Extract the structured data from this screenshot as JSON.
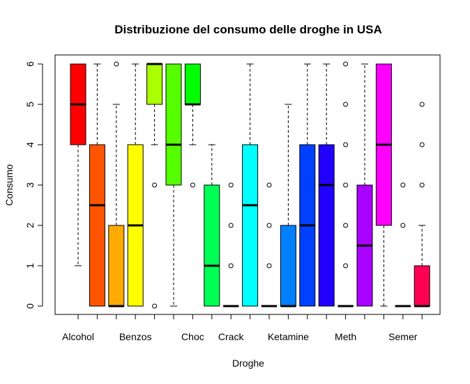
{
  "chart_data": {
    "type": "boxplot",
    "title": "Distribuzione del consumo delle droghe in USA",
    "xlabel": "Droghe",
    "ylabel": "Consumo",
    "ylim": [
      0,
      6
    ],
    "yticks": [
      0,
      1,
      2,
      3,
      4,
      5,
      6
    ],
    "x_tick_labels": [
      "Alcohol",
      "Benzos",
      "Choc",
      "Crack",
      "Ketamine",
      "Meth",
      "Semer"
    ],
    "x_tick_label_positions": [
      1,
      4,
      7,
      9,
      12,
      15,
      18
    ],
    "grid": false,
    "legend": "none",
    "boxes": [
      {
        "index": 1,
        "color": "#FF0000",
        "whisker_low": 1,
        "q1": 4,
        "median": 5,
        "q3": 6,
        "whisker_high": 6,
        "outliers": []
      },
      {
        "index": 2,
        "color": "#FF5500",
        "whisker_low": 0,
        "q1": 0,
        "median": 2.5,
        "q3": 4,
        "whisker_high": 6,
        "outliers": []
      },
      {
        "index": 3,
        "color": "#FFAA00",
        "whisker_low": 0,
        "q1": 0,
        "median": 0,
        "q3": 2,
        "whisker_high": 5,
        "outliers": [
          6
        ]
      },
      {
        "index": 4,
        "color": "#FFFF00",
        "whisker_low": 0,
        "q1": 0,
        "median": 2,
        "q3": 4,
        "whisker_high": 6,
        "outliers": []
      },
      {
        "index": 5,
        "color": "#AAFF00",
        "whisker_low": 4,
        "q1": 5,
        "median": 6,
        "q3": 6,
        "whisker_high": 6,
        "outliers": [
          3,
          0
        ]
      },
      {
        "index": 6,
        "color": "#55FF00",
        "whisker_low": 0,
        "q1": 3,
        "median": 4,
        "q3": 6,
        "whisker_high": 6,
        "outliers": []
      },
      {
        "index": 7,
        "color": "#00FF00",
        "whisker_low": 4,
        "q1": 5,
        "median": 5,
        "q3": 6,
        "whisker_high": 6,
        "outliers": [
          3
        ]
      },
      {
        "index": 8,
        "color": "#00FF55",
        "whisker_low": 0,
        "q1": 0,
        "median": 1,
        "q3": 3,
        "whisker_high": 4,
        "outliers": []
      },
      {
        "index": 9,
        "color": "#00FFAA",
        "whisker_low": 0,
        "q1": 0,
        "median": 0,
        "q3": 0,
        "whisker_high": 0,
        "outliers": [
          1,
          2,
          3
        ]
      },
      {
        "index": 10,
        "color": "#00FFFF",
        "whisker_low": 0,
        "q1": 0,
        "median": 2.5,
        "q3": 4,
        "whisker_high": 6,
        "outliers": []
      },
      {
        "index": 11,
        "color": "#00AAFF",
        "whisker_low": 0,
        "q1": 0,
        "median": 0,
        "q3": 0,
        "whisker_high": 0,
        "outliers": [
          1,
          2,
          3
        ]
      },
      {
        "index": 12,
        "color": "#0080FF",
        "whisker_low": 0,
        "q1": 0,
        "median": 0,
        "q3": 2,
        "whisker_high": 5,
        "outliers": []
      },
      {
        "index": 13,
        "color": "#0040FF",
        "whisker_low": 0,
        "q1": 0,
        "median": 2,
        "q3": 4,
        "whisker_high": 6,
        "outliers": []
      },
      {
        "index": 14,
        "color": "#2200FF",
        "whisker_low": 0,
        "q1": 0,
        "median": 3,
        "q3": 4,
        "whisker_high": 6,
        "outliers": []
      },
      {
        "index": 15,
        "color": "#5500FF",
        "whisker_low": 0,
        "q1": 0,
        "median": 0,
        "q3": 0,
        "whisker_high": 0,
        "outliers": [
          1,
          2,
          3,
          4,
          5,
          6
        ]
      },
      {
        "index": 16,
        "color": "#AA00FF",
        "whisker_low": 0,
        "q1": 0,
        "median": 1.5,
        "q3": 3,
        "whisker_high": 6,
        "outliers": []
      },
      {
        "index": 17,
        "color": "#FF00FF",
        "whisker_low": 0,
        "q1": 2,
        "median": 4,
        "q3": 6,
        "whisker_high": 6,
        "outliers": []
      },
      {
        "index": 18,
        "color": "#FF00AA",
        "whisker_low": 0,
        "q1": 0,
        "median": 0,
        "q3": 0,
        "whisker_high": 0,
        "outliers": [
          2,
          3
        ]
      },
      {
        "index": 19,
        "color": "#FF0055",
        "whisker_low": 0,
        "q1": 0,
        "median": 0,
        "q3": 1,
        "whisker_high": 2,
        "outliers": [
          3,
          4,
          5
        ]
      }
    ]
  }
}
